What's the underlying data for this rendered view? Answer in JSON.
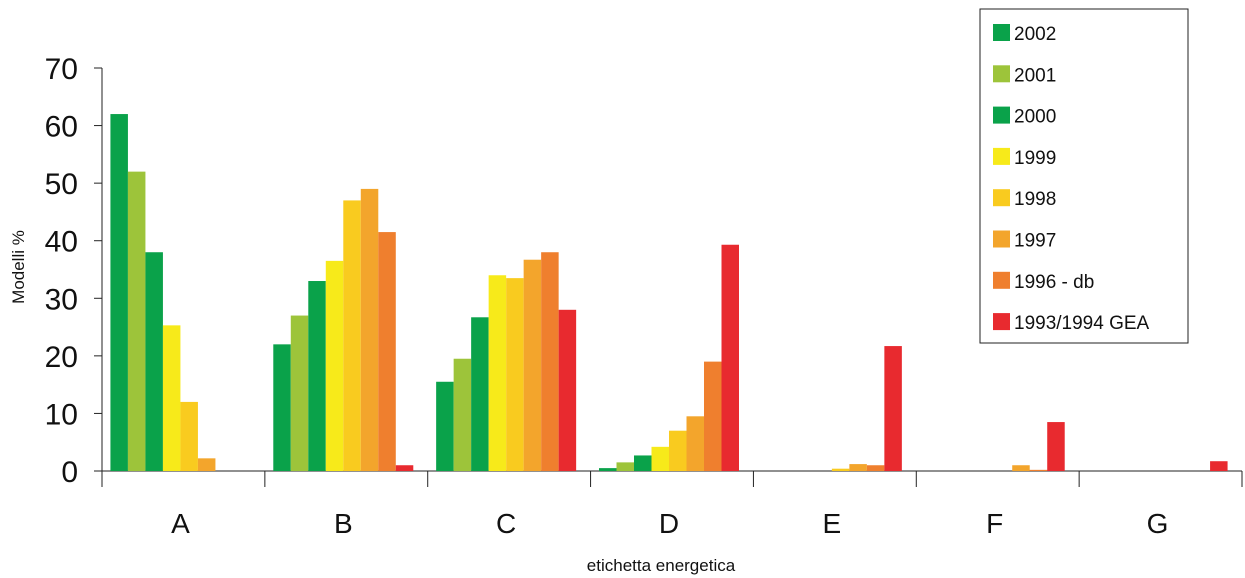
{
  "chart_data": {
    "type": "bar",
    "title": "",
    "xlabel": "etichetta energetica",
    "ylabel": "Modelli %",
    "ylim": [
      0,
      70
    ],
    "yticks": [
      0,
      10,
      20,
      30,
      40,
      50,
      60,
      70
    ],
    "grid": false,
    "legend_position": "top-right",
    "categories": [
      "A",
      "B",
      "C",
      "D",
      "E",
      "F",
      "G"
    ],
    "series": [
      {
        "name": "2002",
        "color": "#0aa24a",
        "values": [
          62,
          22,
          15.5,
          0.5,
          0,
          0,
          0
        ]
      },
      {
        "name": "2001",
        "color": "#9dc43a",
        "values": [
          52,
          27,
          19.5,
          1.5,
          0,
          0,
          0
        ]
      },
      {
        "name": "2000",
        "color": "#0aa24a",
        "values": [
          38,
          33,
          26.7,
          2.7,
          0,
          0,
          0
        ]
      },
      {
        "name": "1999",
        "color": "#f7ea1a",
        "values": [
          25.3,
          36.5,
          34,
          4.2,
          0,
          0,
          0
        ]
      },
      {
        "name": "1998",
        "color": "#f9cb1f",
        "values": [
          12,
          47,
          33.5,
          7,
          0.4,
          0,
          0
        ]
      },
      {
        "name": "1997",
        "color": "#f3a52c",
        "values": [
          2.2,
          49,
          36.7,
          9.5,
          1.2,
          1,
          0
        ]
      },
      {
        "name": "1996 - db",
        "color": "#ef7f2e",
        "values": [
          0,
          41.5,
          38,
          19,
          1,
          0.2,
          0
        ]
      },
      {
        "name": "1993/1994 GEA",
        "color": "#e82a2f",
        "values": [
          0,
          1,
          28,
          39.3,
          21.7,
          8.5,
          1.7
        ]
      }
    ]
  }
}
